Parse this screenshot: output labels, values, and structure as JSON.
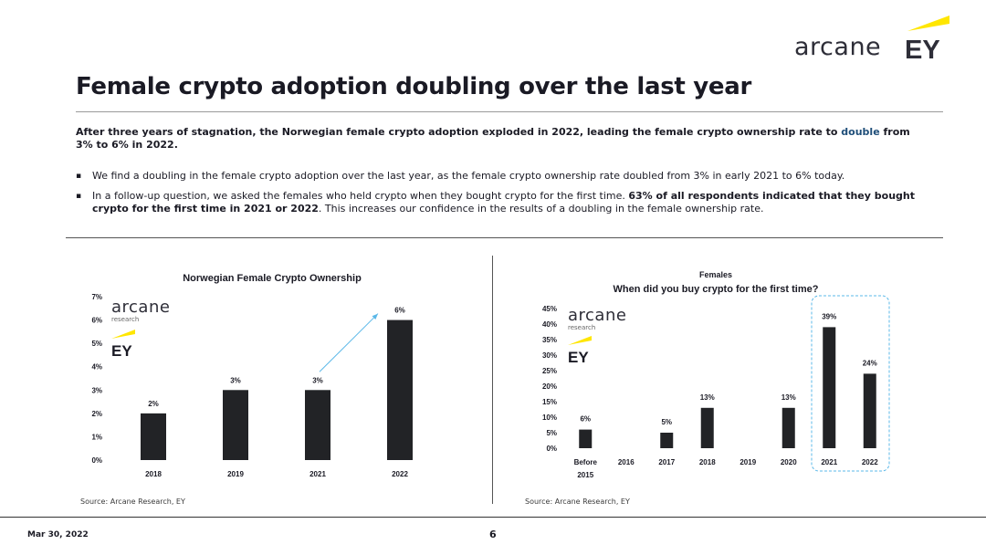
{
  "header": {
    "arcane_logo_text": "arcane",
    "ey_logo_text": "EY",
    "title": "Female crypto adoption doubling over the last year"
  },
  "lead": {
    "part1": "After three years of stagnation, the Norwegian female crypto adoption exploded in 2022, leading the female crypto ownership rate to ",
    "highlight": "double",
    "part2": " from 3% to 6% in 2022."
  },
  "bullets": [
    {
      "text": "We find a doubling in the female crypto adoption over the last year, as the female crypto ownership rate doubled from 3% in early 2021 to 6% today."
    },
    {
      "pre": "In a follow-up question, we asked the females who held crypto when they bought crypto for the first time. ",
      "bold": "63% of all respondents indicated that they bought crypto for the first time in 2021 or 2022",
      "post": ". This increases our confidence in the results of a doubling in the female ownership rate."
    }
  ],
  "chart_logo": {
    "arcane": "arcane",
    "research": "research",
    "ey": "EY"
  },
  "colors": {
    "bar": "#222326",
    "arrow": "#5bb8e8",
    "highlight_box": "#5bb8e8",
    "ey_yellow": "#ffe600",
    "accent_text": "#1f4e79"
  },
  "chart_data": [
    {
      "type": "bar",
      "title": "Norwegian Female Crypto Ownership",
      "categories": [
        "2018",
        "2019",
        "2021",
        "2022"
      ],
      "values": [
        2,
        3,
        3,
        6
      ],
      "value_labels": [
        "2%",
        "3%",
        "3%",
        "6%"
      ],
      "y_ticks": [
        "0%",
        "1%",
        "2%",
        "3%",
        "4%",
        "5%",
        "6%",
        "7%"
      ],
      "ylim": [
        0,
        7
      ],
      "annotation": "arrow-from-2021-to-2022",
      "grid": false,
      "source": "Source: Arcane Research, EY"
    },
    {
      "type": "bar",
      "subtitle": "Females",
      "title": "When did you buy crypto for the first time?",
      "categories": [
        "Before 2015",
        "2016",
        "2017",
        "2018",
        "2019",
        "2020",
        "2021",
        "2022"
      ],
      "values": [
        6,
        0,
        5,
        13,
        0,
        13,
        39,
        24
      ],
      "value_labels": [
        "6%",
        "",
        "5%",
        "13%",
        "",
        "13%",
        "39%",
        "24%"
      ],
      "y_ticks": [
        "0%",
        "5%",
        "10%",
        "15%",
        "20%",
        "25%",
        "30%",
        "35%",
        "40%",
        "45%"
      ],
      "ylim": [
        0,
        45
      ],
      "highlight": [
        "2021",
        "2022"
      ],
      "grid": false,
      "source": "Source: Arcane Research, EY"
    }
  ],
  "footer": {
    "date": "Mar 30, 2022",
    "page": "6"
  }
}
